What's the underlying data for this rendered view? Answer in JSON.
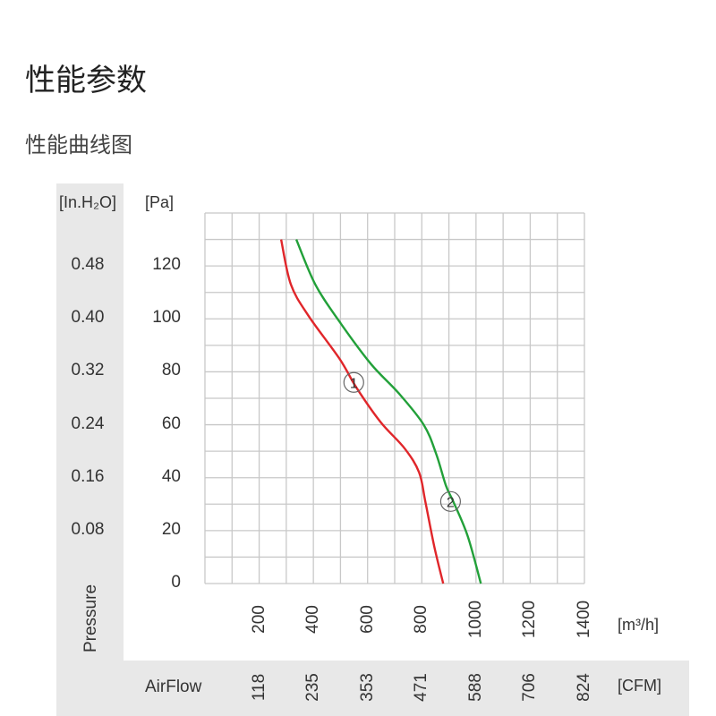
{
  "header": {
    "title": "性能参数",
    "subtitle": "性能曲线图"
  },
  "chart_data": {
    "type": "line",
    "xlabel": "AirFlow",
    "ylabel": "Pressure",
    "x_unit_primary": "[m³/h]",
    "x_unit_secondary": "[CFM]",
    "y_unit_primary": "[Pa]",
    "y_unit_secondary": "[In.H₂O]",
    "xlim": [
      0,
      1400
    ],
    "ylim": [
      0,
      140
    ],
    "grid": true,
    "x_ticks": [
      "200",
      "400",
      "600",
      "800",
      "1000",
      "1200",
      "1400"
    ],
    "x_ticks_values": [
      200,
      400,
      600,
      800,
      1000,
      1200,
      1400
    ],
    "x_ticks_secondary": [
      "118",
      "235",
      "353",
      "471",
      "588",
      "706",
      "824"
    ],
    "y_ticks": [
      "0",
      "20",
      "40",
      "60",
      "80",
      "100",
      "120"
    ],
    "y_ticks_values": [
      0,
      20,
      40,
      60,
      80,
      100,
      120
    ],
    "y_ticks_secondary": [
      "0.08",
      "0.16",
      "0.24",
      "0.32",
      "0.40",
      "0.48"
    ],
    "y_ticks_secondary_values": [
      20,
      40,
      60,
      80,
      100,
      120
    ],
    "series": [
      {
        "color": "#e0262a",
        "marker_label": "1",
        "marker_point": [
          549,
          76
        ],
        "x": [
          281,
          317,
          383,
          496,
          559,
          648,
          737,
          790,
          813,
          846,
          879
        ],
        "y": [
          130,
          113,
          101,
          85,
          74,
          61,
          51,
          42,
          31,
          14,
          0
        ]
      },
      {
        "color": "#22a039",
        "marker_label": "2",
        "marker_point": [
          906,
          31
        ],
        "x": [
          337,
          407,
          496,
          612,
          714,
          807,
          853,
          889,
          916,
          969,
          1018
        ],
        "y": [
          130,
          113,
          99,
          83,
          72,
          60,
          49,
          37,
          31,
          18,
          0
        ]
      }
    ]
  }
}
